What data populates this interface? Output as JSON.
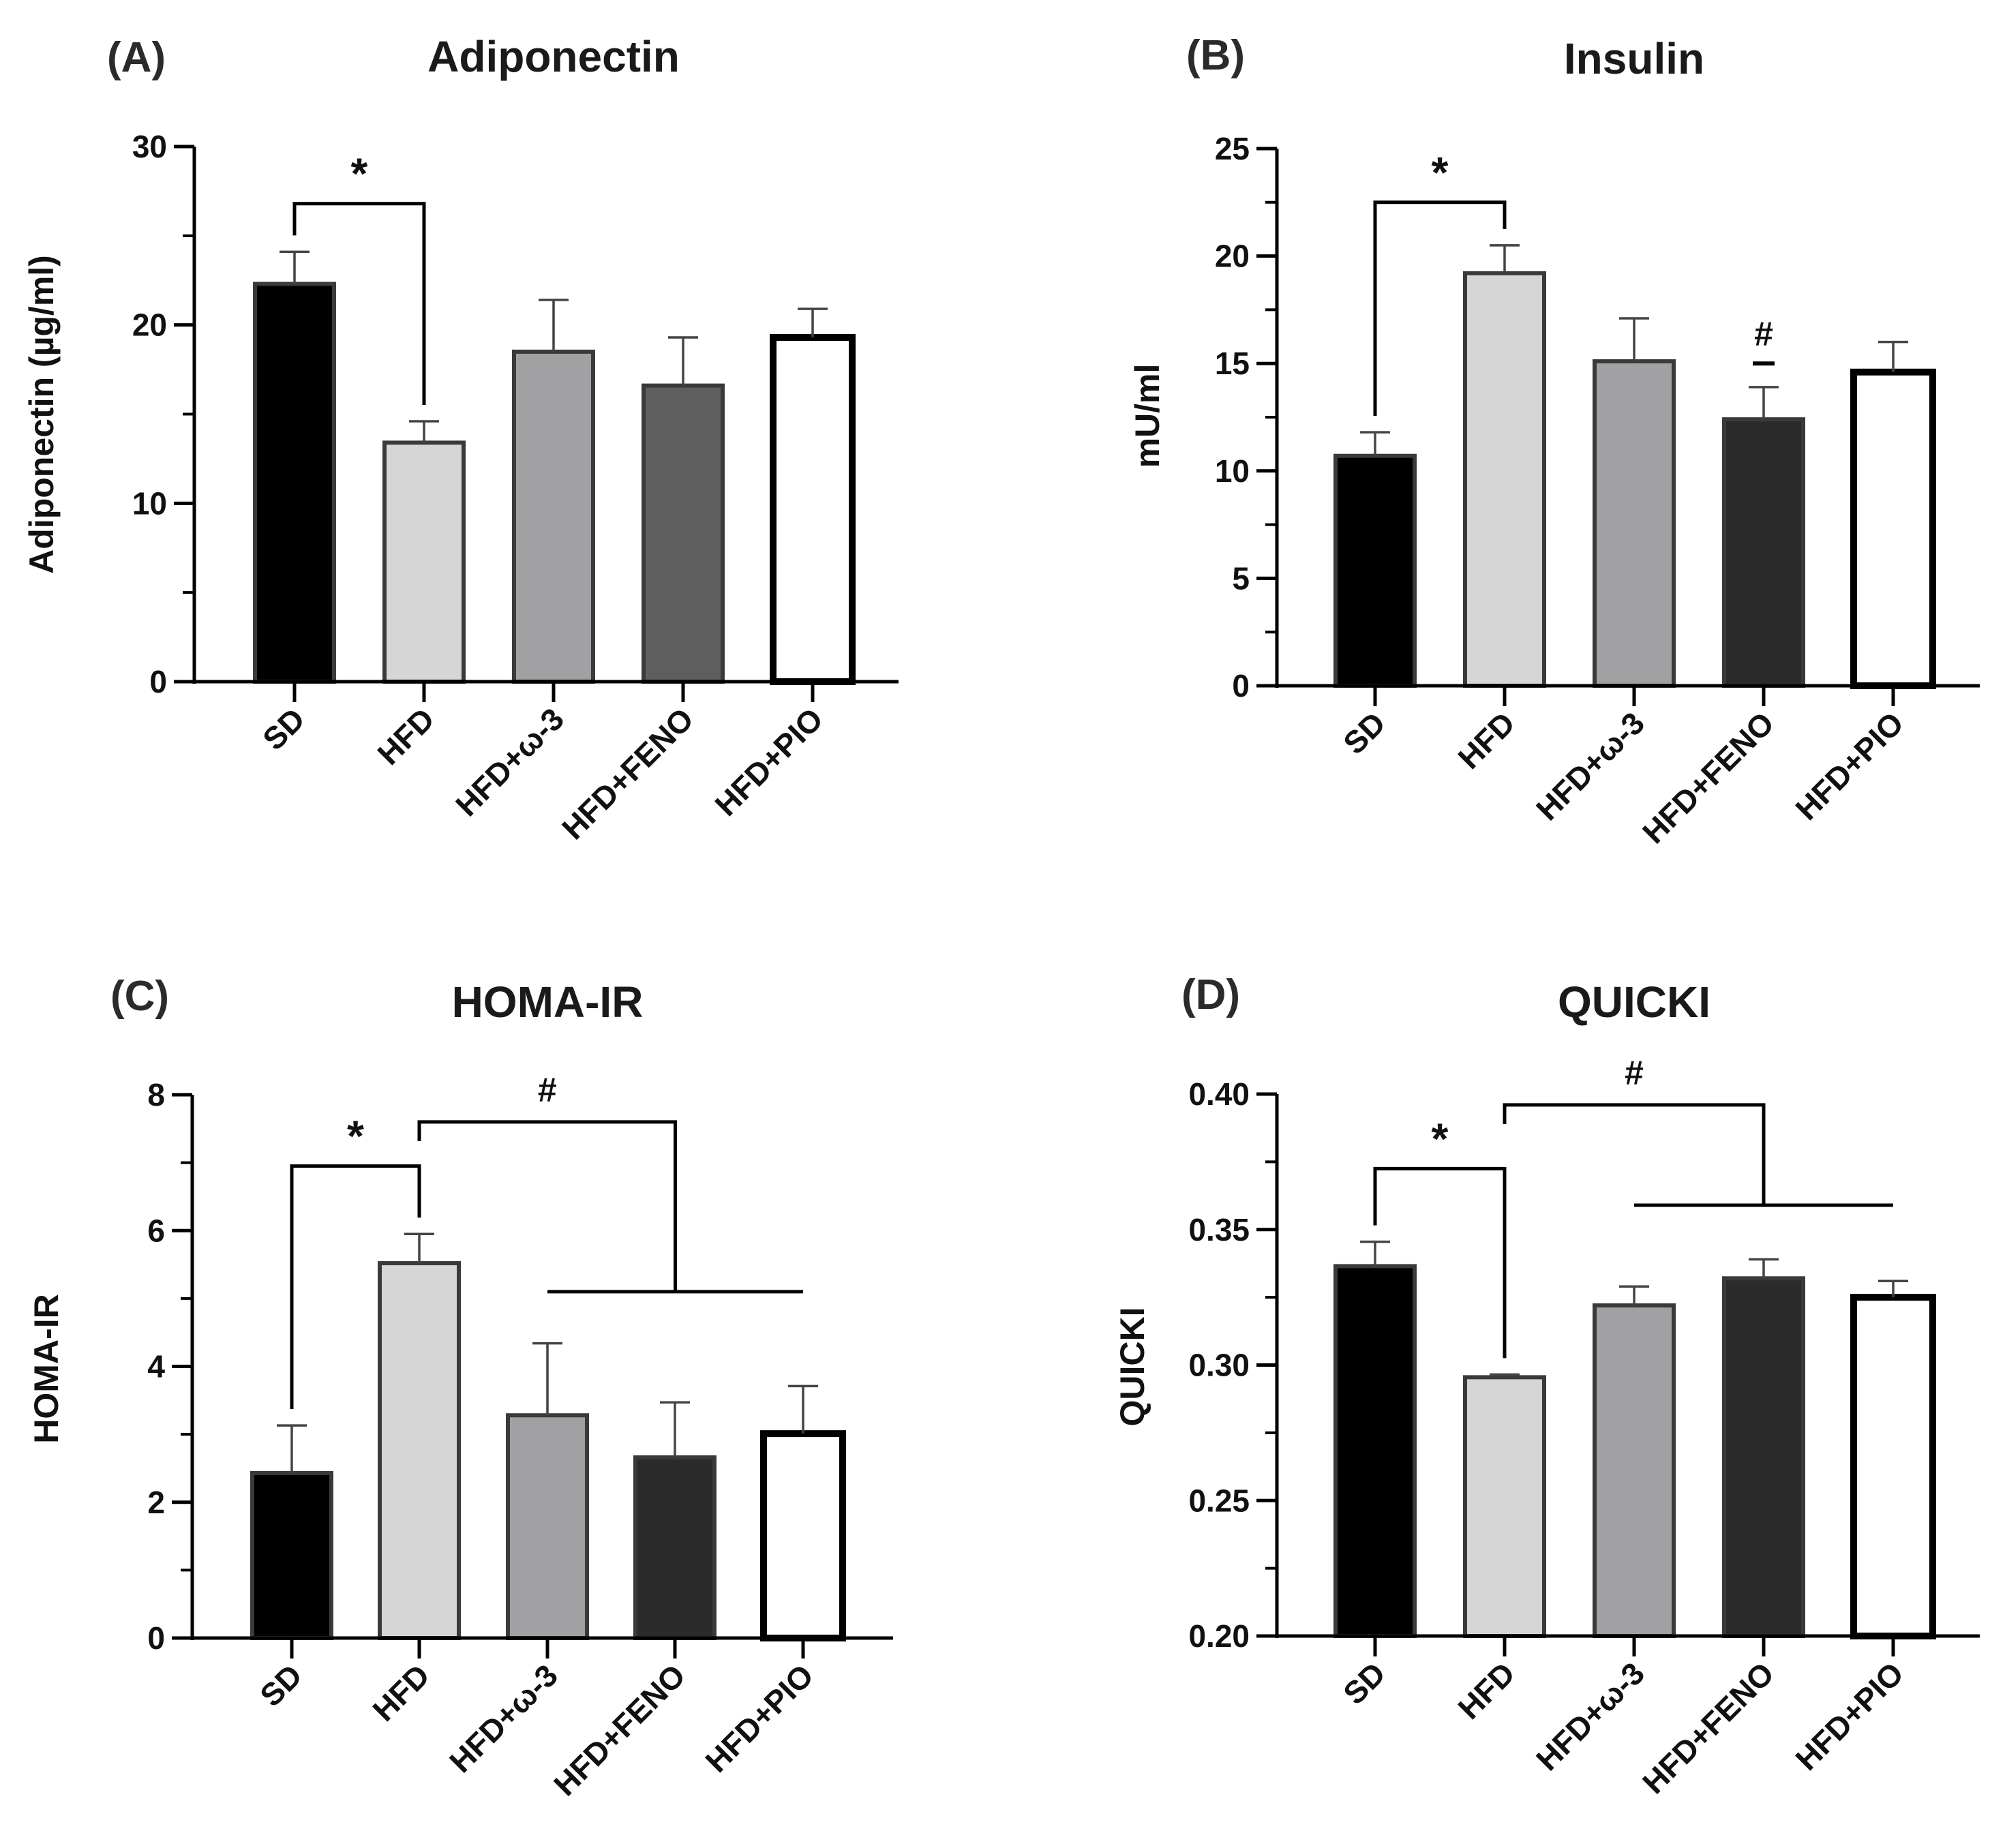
{
  "chart_data": [
    {
      "panel": "(A)",
      "type": "bar",
      "title": "Adiponectin",
      "ylabel": "Adiponectin (µg/ml)",
      "xlabel": "",
      "ylim": [
        0,
        30
      ],
      "yticks": [
        0,
        10,
        20,
        30
      ],
      "ytick_labels": [
        "0",
        "10",
        "20",
        "30"
      ],
      "minor_step": 5,
      "categories": [
        "SD",
        "HFD",
        "HFD+ω-3",
        "HFD+FENO",
        "HFD+PIO"
      ],
      "values": [
        22.3,
        13.4,
        18.5,
        16.6,
        19.3
      ],
      "errors": [
        1.8,
        1.2,
        2.9,
        2.7,
        1.6
      ],
      "bar_colors": [
        "#000000",
        "#d6d6d6",
        "#a1a1a3",
        "#5e5e5e",
        "#ffffff"
      ],
      "annotations": [
        {
          "symbol": "*",
          "from": 0,
          "to": 1,
          "level": 26.8
        }
      ]
    },
    {
      "panel": "(B)",
      "type": "bar",
      "title": "Insulin",
      "ylabel": "mU/ml",
      "xlabel": "",
      "ylim": [
        0,
        25
      ],
      "yticks": [
        0,
        5,
        10,
        15,
        20,
        25
      ],
      "ytick_labels": [
        "0",
        "5",
        "10",
        "15",
        "20",
        "25"
      ],
      "minor_step": 2.5,
      "categories": [
        "SD",
        "HFD",
        "HFD+ω-3",
        "HFD+FENO",
        "HFD+PIO"
      ],
      "values": [
        10.7,
        19.2,
        15.1,
        12.4,
        14.6
      ],
      "errors": [
        1.1,
        1.3,
        2.0,
        1.5,
        1.4
      ],
      "bar_colors": [
        "#000000",
        "#d6d6d6",
        "#a1a1a3",
        "#2b2b2b",
        "#ffffff"
      ],
      "annotations": [
        {
          "symbol": "*",
          "from": 0,
          "to": 1,
          "level": 22.5
        },
        {
          "symbol": "#",
          "at": 3,
          "level": 15.0
        }
      ]
    },
    {
      "panel": "(C)",
      "type": "bar",
      "title": "HOMA-IR",
      "ylabel": "HOMA-IR",
      "xlabel": "",
      "ylim": [
        0,
        8
      ],
      "yticks": [
        0,
        2,
        4,
        6,
        8
      ],
      "ytick_labels": [
        "0",
        "2",
        "4",
        "6",
        "8"
      ],
      "minor_step": 1,
      "categories": [
        "SD",
        "HFD",
        "HFD+ω-3",
        "HFD+FENO",
        "HFD+PIO"
      ],
      "values": [
        2.43,
        5.52,
        3.28,
        2.66,
        3.01
      ],
      "errors": [
        0.7,
        0.43,
        1.06,
        0.81,
        0.7
      ],
      "bar_colors": [
        "#000000",
        "#d6d6d6",
        "#a1a1a3",
        "#2b2b2b",
        "#ffffff"
      ],
      "annotations": [
        {
          "symbol": "*",
          "from": 0,
          "to": 1,
          "level": 6.95
        },
        {
          "symbol": "#",
          "from": 1,
          "to_group": [
            2,
            4
          ],
          "level": 7.6,
          "group_level": 5.1
        }
      ]
    },
    {
      "panel": "(D)",
      "type": "bar",
      "title": "QUICKI",
      "ylabel": "QUICKI",
      "xlabel": "",
      "ylim": [
        0.2,
        0.4
      ],
      "yticks": [
        0.2,
        0.25,
        0.3,
        0.35,
        0.4
      ],
      "ytick_labels": [
        "0.20",
        "0.25",
        "0.30",
        "0.35",
        "0.40"
      ],
      "minor_step": 0.025,
      "categories": [
        "SD",
        "HFD",
        "HFD+ω-3",
        "HFD+FENO",
        "HFD+PIO"
      ],
      "values": [
        0.3365,
        0.2955,
        0.322,
        0.332,
        0.325
      ],
      "errors": [
        0.009,
        0.001,
        0.007,
        0.007,
        0.006
      ],
      "bar_colors": [
        "#000000",
        "#d6d6d6",
        "#a1a1a3",
        "#2b2b2b",
        "#ffffff"
      ],
      "annotations": [
        {
          "symbol": "*",
          "from": 0,
          "to": 1,
          "level": 0.3725
        },
        {
          "symbol": "#",
          "from": 1,
          "to_group": [
            2,
            4
          ],
          "level": 0.396,
          "group_level": 0.359
        }
      ]
    }
  ]
}
